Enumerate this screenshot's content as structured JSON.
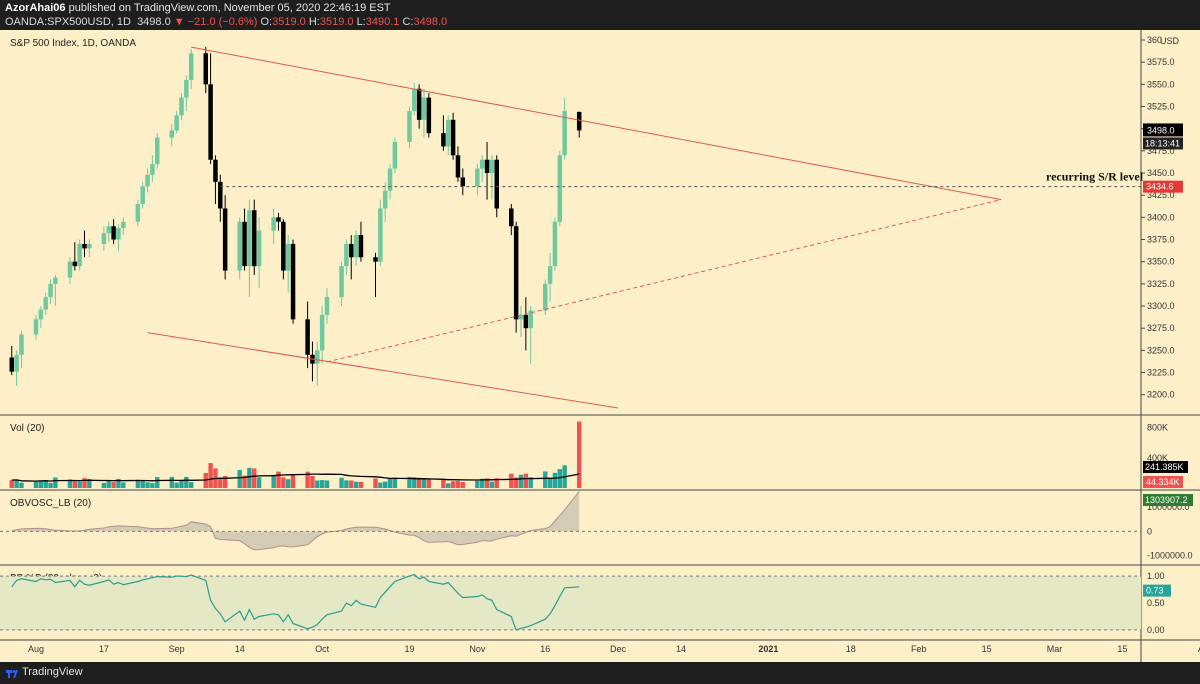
{
  "header": {
    "author": "AzorAhai06",
    "published": "published on TradingView.com, November 05, 2020 22:46:19 EST",
    "symbol": "OANDA:SPX500USD, 1D",
    "last": "3498.0",
    "change": "▼ −21.0 (−0.6%)",
    "o_label": "O:",
    "o_value": "3519.0",
    "h_label": "H:",
    "h_value": "3519.0",
    "l_label": "L:",
    "l_value": "3490.1",
    "c_label": "C:",
    "c_value": "3498.0"
  },
  "footer": {
    "brand": "TradingView"
  },
  "colors": {
    "up": "#6fc8a0",
    "down": "#000000",
    "trend": "#e05a4a",
    "vol_up": "#26a69a",
    "vol_down": "#ef5350",
    "bb_line": "#2a9d8f",
    "bb_fill": "#e4e8c4",
    "background": "#fdf0c8"
  },
  "chart_data": [
    {
      "type": "candlestick",
      "title": "S&P 500 Index, 1D, OANDA",
      "currency": "USD",
      "ylim": [
        3185,
        3600
      ],
      "y_ticks": [
        "3200.0",
        "3225.0",
        "3250.0",
        "3275.0",
        "3300.0",
        "3325.0",
        "3350.0",
        "3375.0",
        "3400.0",
        "3425.0",
        "3450.0",
        "3475.0",
        "3500.0",
        "3525.0",
        "3550.0",
        "3575.0",
        "360"
      ],
      "x_ticks": [
        "Aug",
        "17",
        "Sep",
        "14",
        "Oct",
        "19",
        "Nov",
        "16",
        "Dec",
        "14",
        "2021",
        "18",
        "Feb",
        "15",
        "Mar",
        "15",
        "Apr"
      ],
      "x_tick_dates": [
        "2020-08-03",
        "2020-08-17",
        "2020-09-01",
        "2020-09-14",
        "2020-10-01",
        "2020-10-19",
        "2020-11-02",
        "2020-11-16",
        "2020-12-01",
        "2020-12-14",
        "2021-01-01",
        "2021-01-18",
        "2021-02-01",
        "2021-02-15",
        "2021-03-01",
        "2021-03-15",
        "2021-04-01"
      ],
      "candles": [
        {
          "date": "2020-07-29",
          "o": 3242,
          "h": 3255,
          "l": 3222,
          "c": 3226
        },
        {
          "date": "2020-07-30",
          "o": 3226,
          "h": 3250,
          "l": 3210,
          "c": 3245
        },
        {
          "date": "2020-07-31",
          "o": 3245,
          "h": 3272,
          "l": 3230,
          "c": 3268
        },
        {
          "date": "2020-08-03",
          "o": 3268,
          "h": 3290,
          "l": 3262,
          "c": 3285
        },
        {
          "date": "2020-08-04",
          "o": 3285,
          "h": 3300,
          "l": 3275,
          "c": 3296
        },
        {
          "date": "2020-08-05",
          "o": 3296,
          "h": 3315,
          "l": 3290,
          "c": 3310
        },
        {
          "date": "2020-08-06",
          "o": 3310,
          "h": 3330,
          "l": 3302,
          "c": 3325
        },
        {
          "date": "2020-08-07",
          "o": 3325,
          "h": 3335,
          "l": 3300,
          "c": 3332
        },
        {
          "date": "2020-08-10",
          "o": 3332,
          "h": 3355,
          "l": 3325,
          "c": 3350
        },
        {
          "date": "2020-08-11",
          "o": 3350,
          "h": 3372,
          "l": 3340,
          "c": 3345
        },
        {
          "date": "2020-08-12",
          "o": 3345,
          "h": 3375,
          "l": 3340,
          "c": 3370
        },
        {
          "date": "2020-08-13",
          "o": 3370,
          "h": 3385,
          "l": 3355,
          "c": 3365
        },
        {
          "date": "2020-08-14",
          "o": 3365,
          "h": 3375,
          "l": 3355,
          "c": 3370
        },
        {
          "date": "2020-08-17",
          "o": 3370,
          "h": 3390,
          "l": 3362,
          "c": 3382
        },
        {
          "date": "2020-08-18",
          "o": 3382,
          "h": 3395,
          "l": 3372,
          "c": 3390
        },
        {
          "date": "2020-08-19",
          "o": 3390,
          "h": 3398,
          "l": 3370,
          "c": 3375
        },
        {
          "date": "2020-08-20",
          "o": 3375,
          "h": 3392,
          "l": 3362,
          "c": 3388
        },
        {
          "date": "2020-08-21",
          "o": 3388,
          "h": 3400,
          "l": 3380,
          "c": 3395
        },
        {
          "date": "2020-08-24",
          "o": 3395,
          "h": 3420,
          "l": 3390,
          "c": 3415
        },
        {
          "date": "2020-08-25",
          "o": 3415,
          "h": 3440,
          "l": 3410,
          "c": 3435
        },
        {
          "date": "2020-08-26",
          "o": 3435,
          "h": 3455,
          "l": 3428,
          "c": 3448
        },
        {
          "date": "2020-08-27",
          "o": 3448,
          "h": 3470,
          "l": 3440,
          "c": 3460
        },
        {
          "date": "2020-08-28",
          "o": 3460,
          "h": 3495,
          "l": 3455,
          "c": 3490
        },
        {
          "date": "2020-08-31",
          "o": 3490,
          "h": 3505,
          "l": 3480,
          "c": 3498
        },
        {
          "date": "2020-09-01",
          "o": 3498,
          "h": 3520,
          "l": 3495,
          "c": 3515
        },
        {
          "date": "2020-09-02",
          "o": 3515,
          "h": 3540,
          "l": 3510,
          "c": 3535
        },
        {
          "date": "2020-09-03",
          "o": 3535,
          "h": 3560,
          "l": 3520,
          "c": 3555
        },
        {
          "date": "2020-09-04",
          "o": 3555,
          "h": 3590,
          "l": 3545,
          "c": 3585
        },
        {
          "date": "2020-09-07",
          "o": 3585,
          "h": 3592,
          "l": 3540,
          "c": 3550
        },
        {
          "date": "2020-09-08",
          "o": 3550,
          "h": 3585,
          "l": 3460,
          "c": 3465
        },
        {
          "date": "2020-09-09",
          "o": 3465,
          "h": 3470,
          "l": 3415,
          "c": 3440
        },
        {
          "date": "2020-09-10",
          "o": 3440,
          "h": 3448,
          "l": 3395,
          "c": 3410
        },
        {
          "date": "2020-09-11",
          "o": 3410,
          "h": 3425,
          "l": 3330,
          "c": 3340
        },
        {
          "date": "2020-09-14",
          "o": 3340,
          "h": 3400,
          "l": 3330,
          "c": 3395
        },
        {
          "date": "2020-09-15",
          "o": 3395,
          "h": 3410,
          "l": 3340,
          "c": 3345
        },
        {
          "date": "2020-09-16",
          "o": 3345,
          "h": 3420,
          "l": 3310,
          "c": 3408
        },
        {
          "date": "2020-09-17",
          "o": 3408,
          "h": 3420,
          "l": 3335,
          "c": 3345
        },
        {
          "date": "2020-09-18",
          "o": 3345,
          "h": 3400,
          "l": 3320,
          "c": 3385
        },
        {
          "date": "2020-09-21",
          "o": 3385,
          "h": 3410,
          "l": 3370,
          "c": 3400
        },
        {
          "date": "2020-09-22",
          "o": 3400,
          "h": 3405,
          "l": 3385,
          "c": 3395
        },
        {
          "date": "2020-09-23",
          "o": 3395,
          "h": 3398,
          "l": 3330,
          "c": 3340
        },
        {
          "date": "2020-09-24",
          "o": 3340,
          "h": 3380,
          "l": 3315,
          "c": 3370
        },
        {
          "date": "2020-09-25",
          "o": 3370,
          "h": 3375,
          "l": 3280,
          "c": 3285
        },
        {
          "date": "2020-09-28",
          "o": 3285,
          "h": 3305,
          "l": 3230,
          "c": 3245
        },
        {
          "date": "2020-09-29",
          "o": 3245,
          "h": 3260,
          "l": 3215,
          "c": 3235
        },
        {
          "date": "2020-09-30",
          "o": 3235,
          "h": 3260,
          "l": 3210,
          "c": 3250
        },
        {
          "date": "2020-10-01",
          "o": 3250,
          "h": 3300,
          "l": 3235,
          "c": 3290
        },
        {
          "date": "2020-10-02",
          "o": 3290,
          "h": 3320,
          "l": 3280,
          "c": 3310
        },
        {
          "date": "2020-10-05",
          "o": 3310,
          "h": 3350,
          "l": 3300,
          "c": 3345
        },
        {
          "date": "2020-10-06",
          "o": 3345,
          "h": 3375,
          "l": 3335,
          "c": 3370
        },
        {
          "date": "2020-10-07",
          "o": 3370,
          "h": 3380,
          "l": 3330,
          "c": 3355
        },
        {
          "date": "2020-10-08",
          "o": 3355,
          "h": 3385,
          "l": 3345,
          "c": 3380
        },
        {
          "date": "2020-10-09",
          "o": 3380,
          "h": 3395,
          "l": 3350,
          "c": 3355
        },
        {
          "date": "2020-10-12",
          "o": 3355,
          "h": 3360,
          "l": 3310,
          "c": 3350
        },
        {
          "date": "2020-10-13",
          "o": 3350,
          "h": 3420,
          "l": 3345,
          "c": 3410
        },
        {
          "date": "2020-10-14",
          "o": 3410,
          "h": 3440,
          "l": 3395,
          "c": 3430
        },
        {
          "date": "2020-10-15",
          "o": 3430,
          "h": 3460,
          "l": 3420,
          "c": 3455
        },
        {
          "date": "2020-10-16",
          "o": 3455,
          "h": 3490,
          "l": 3450,
          "c": 3485
        },
        {
          "date": "2020-10-19",
          "o": 3485,
          "h": 3525,
          "l": 3478,
          "c": 3520
        },
        {
          "date": "2020-10-20",
          "o": 3520,
          "h": 3552,
          "l": 3515,
          "c": 3545
        },
        {
          "date": "2020-10-21",
          "o": 3545,
          "h": 3550,
          "l": 3500,
          "c": 3510
        },
        {
          "date": "2020-10-22",
          "o": 3510,
          "h": 3545,
          "l": 3490,
          "c": 3535
        },
        {
          "date": "2020-10-23",
          "o": 3535,
          "h": 3540,
          "l": 3490,
          "c": 3495
        },
        {
          "date": "2020-10-26",
          "o": 3495,
          "h": 3515,
          "l": 3475,
          "c": 3480
        },
        {
          "date": "2020-10-27",
          "o": 3480,
          "h": 3515,
          "l": 3470,
          "c": 3510
        },
        {
          "date": "2020-10-28",
          "o": 3510,
          "h": 3518,
          "l": 3465,
          "c": 3470
        },
        {
          "date": "2020-10-29",
          "o": 3470,
          "h": 3480,
          "l": 3440,
          "c": 3445
        },
        {
          "date": "2020-10-30",
          "o": 3445,
          "h": 3455,
          "l": 3425,
          "c": 3435
        },
        {
          "date": "2020-11-02",
          "o": 3435,
          "h": 3460,
          "l": 3425,
          "c": 3455
        },
        {
          "date": "2020-11-03",
          "o": 3455,
          "h": 3470,
          "l": 3440,
          "c": 3465
        },
        {
          "date": "2020-11-04",
          "o": 3465,
          "h": 3485,
          "l": 3420,
          "c": 3450
        },
        {
          "date": "2020-11-05",
          "o": 3450,
          "h": 3470,
          "l": 3420,
          "c": 3465
        },
        {
          "date": "2020-11-06",
          "o": 3465,
          "h": 3470,
          "l": 3400,
          "c": 3410
        },
        {
          "date": "2020-11-09",
          "o": 3410,
          "h": 3415,
          "l": 3380,
          "c": 3390
        },
        {
          "date": "2020-11-10",
          "o": 3390,
          "h": 3395,
          "l": 3270,
          "c": 3285
        },
        {
          "date": "2020-11-11",
          "o": 3285,
          "h": 3300,
          "l": 3265,
          "c": 3290
        },
        {
          "date": "2020-11-12",
          "o": 3290,
          "h": 3310,
          "l": 3250,
          "c": 3275
        },
        {
          "date": "2020-11-13",
          "o": 3275,
          "h": 3300,
          "l": 3235,
          "c": 3295
        },
        {
          "date": "2020-11-16",
          "o": 3295,
          "h": 3330,
          "l": 3290,
          "c": 3325
        },
        {
          "date": "2020-11-17",
          "o": 3325,
          "h": 3360,
          "l": 3305,
          "c": 3345
        },
        {
          "date": "2020-11-18",
          "o": 3345,
          "h": 3400,
          "l": 3340,
          "c": 3395
        },
        {
          "date": "2020-11-19",
          "o": 3395,
          "h": 3475,
          "l": 3390,
          "c": 3470
        },
        {
          "date": "2020-11-20",
          "o": 3470,
          "h": 3535,
          "l": 3465,
          "c": 3520
        },
        {
          "date": "2020-11-23",
          "o": 3519,
          "h": 3519,
          "l": 3490,
          "c": 3498
        }
      ],
      "last_price": "3498.0",
      "countdown": "18:13:41",
      "sr_level": {
        "value": 3434.6,
        "label": "3434.6",
        "text": "recurring S/R level"
      },
      "trendlines": [
        {
          "from": {
            "date": "2020-09-04",
            "price": 3592
          },
          "to": {
            "date": "2021-02-18",
            "price": 3420
          },
          "style": "solid"
        },
        {
          "from": {
            "date": "2020-08-26",
            "price": 3270
          },
          "to": {
            "date": "2020-12-01",
            "price": 3185
          },
          "style": "solid"
        },
        {
          "from": {
            "date": "2020-10-02",
            "price": 3237
          },
          "to": {
            "date": "2021-02-18",
            "price": 3420
          },
          "style": "dashed"
        }
      ]
    },
    {
      "type": "bar",
      "title": "Vol (20)",
      "ylim": [
        0,
        900000
      ],
      "y_ticks": [
        "800K",
        "400K"
      ],
      "ma_value": "241.385K",
      "last_value": "44.334K"
    },
    {
      "type": "area",
      "title": "OBVOSC_LB (20)",
      "ylim": [
        -1300000,
        1500000
      ],
      "y_ticks": [
        "1000000.0",
        "0",
        "-1000000.0"
      ],
      "last_value": "1303907.2"
    },
    {
      "type": "line",
      "title": "BB %B (20, close, 2)",
      "ylim": [
        -0.15,
        1.15
      ],
      "y_ticks": [
        "1.00",
        "0.50",
        "0.00"
      ],
      "last_value": "0.73"
    }
  ]
}
